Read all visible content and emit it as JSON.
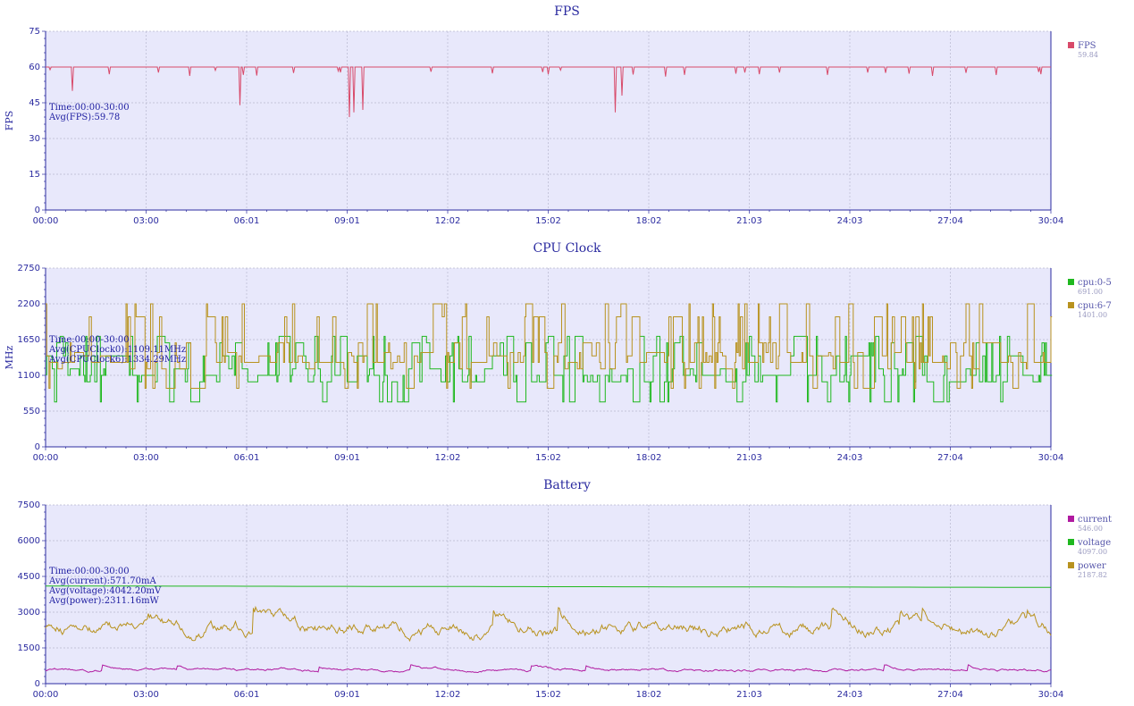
{
  "chart_data": [
    {
      "type": "line",
      "title": "FPS",
      "ylabel": "FPS",
      "ylim": [
        0,
        75
      ],
      "yticks": [
        "0",
        "15",
        "30",
        "45",
        "60",
        "75"
      ],
      "xticks": [
        "00:00",
        "03:00",
        "06:01",
        "09:01",
        "12:02",
        "15:02",
        "18:02",
        "21:03",
        "24:03",
        "27:04",
        "30:04"
      ],
      "annotations": [
        "Time:00:00-30:00",
        "Avg(FPS):59.78"
      ],
      "series": [
        {
          "name": "FPS",
          "legend_value": "59.84",
          "color": "#d84a6a",
          "baseline": 60,
          "dips": [
            [
              0.8,
              50
            ],
            [
              1.9,
              57
            ],
            [
              5.8,
              44
            ],
            [
              9.05,
              39
            ],
            [
              9.2,
              41
            ],
            [
              9.45,
              42
            ],
            [
              11.5,
              58
            ],
            [
              15.0,
              57
            ],
            [
              17.0,
              41
            ],
            [
              17.2,
              48
            ],
            [
              18.5,
              56
            ],
            [
              21.3,
              57
            ],
            [
              29.7,
              57
            ]
          ]
        }
      ]
    },
    {
      "type": "line",
      "title": "CPU Clock",
      "ylabel": "MHz",
      "ylim": [
        0,
        2750
      ],
      "yticks": [
        "0",
        "550",
        "1100",
        "1650",
        "2200",
        "2750"
      ],
      "xticks": [
        "00:00",
        "03:00",
        "06:01",
        "09:01",
        "12:02",
        "15:02",
        "18:02",
        "21:03",
        "24:03",
        "27:04",
        "30:04"
      ],
      "annotations": [
        "Time:00:00-30:00",
        "Avg(CPUClock0):1109.11MHz",
        "Avg(CPUClock6):1334.29MHz"
      ],
      "series": [
        {
          "name": "cpu:0-5",
          "legend_value": "691.00",
          "color": "#1fb81f",
          "mean": 1109,
          "min": 691,
          "max": 1700
        },
        {
          "name": "cpu:6-7",
          "legend_value": "1401.00",
          "color": "#b8921f",
          "mean": 1334,
          "min": 691,
          "max": 2200
        }
      ]
    },
    {
      "type": "line",
      "title": "Battery",
      "ylabel": "",
      "ylim": [
        0,
        7500
      ],
      "yticks": [
        "0",
        "1500",
        "3000",
        "4500",
        "6000",
        "7500"
      ],
      "xticks": [
        "00:00",
        "03:00",
        "06:01",
        "09:01",
        "12:02",
        "15:02",
        "18:02",
        "21:03",
        "24:03",
        "27:04",
        "30:04"
      ],
      "annotations": [
        "Time:00:00-30:00",
        "Avg(current):571.70mA",
        "Avg(voltage):4042.20mV",
        "Avg(power):2311.16mW"
      ],
      "series": [
        {
          "name": "current",
          "legend_value": "546.00",
          "color": "#b01aa0",
          "mean": 572,
          "min": 450,
          "max": 800
        },
        {
          "name": "voltage",
          "legend_value": "4097.00",
          "color": "#1fb81f",
          "start": 4100,
          "end": 4040
        },
        {
          "name": "power",
          "legend_value": "2187.82",
          "color": "#b8921f",
          "mean": 2311,
          "min": 1700,
          "max": 3400
        }
      ]
    }
  ]
}
